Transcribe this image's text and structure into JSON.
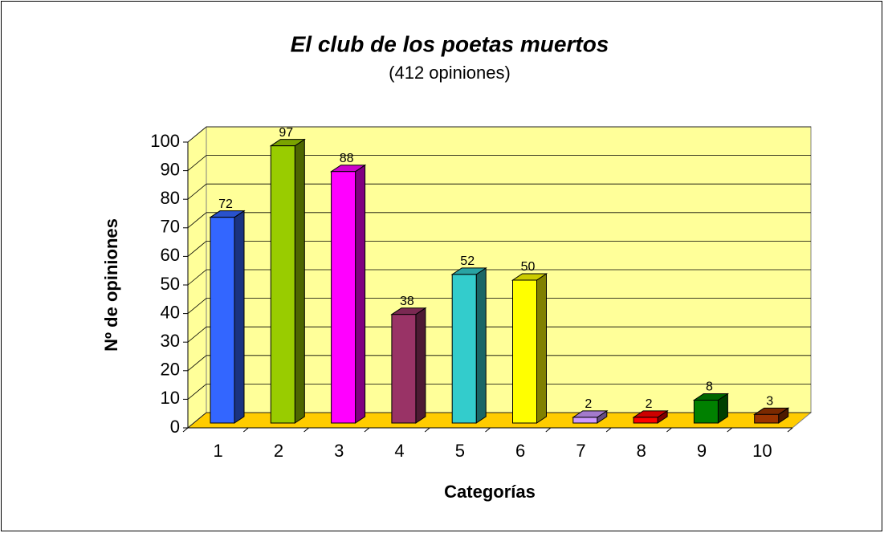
{
  "chart_data": {
    "type": "bar3d",
    "title": "El club de los poetas muertos",
    "subtitle": "(412 opiniones)",
    "x_label": "Categorías",
    "y_label": "Nº de opiniones",
    "categories": [
      "1",
      "2",
      "3",
      "4",
      "5",
      "6",
      "7",
      "8",
      "9",
      "10"
    ],
    "values": [
      72,
      97,
      88,
      38,
      52,
      50,
      2,
      2,
      8,
      3
    ],
    "colors": [
      "#3366ff",
      "#99cc00",
      "#ff00ff",
      "#993366",
      "#33cccc",
      "#ffff00",
      "#cc99ff",
      "#ff0000",
      "#008000",
      "#993300"
    ],
    "ylim": [
      0,
      100
    ],
    "yticks": [
      0,
      10,
      20,
      30,
      40,
      50,
      60,
      70,
      80,
      90,
      100
    ],
    "grid": true
  }
}
